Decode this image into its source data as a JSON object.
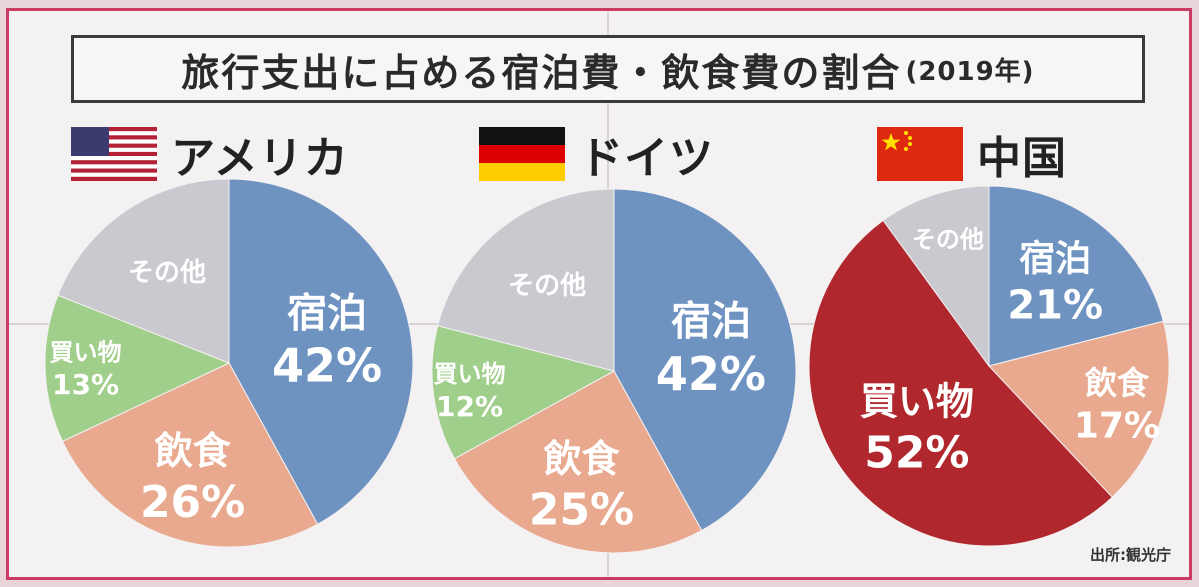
{
  "title": "旅行支出に占める宿泊費・飲食費の割合",
  "title_year": "(2019年)",
  "source": "出所:観光庁",
  "colors": {
    "border": "#c93b63",
    "lodging": "#6f93c1",
    "food": "#e8a98f",
    "shopping": "#9fcf8a",
    "other": "#c9c9cf",
    "shopping_cn": "#b0282e"
  },
  "countries": [
    {
      "name": "アメリカ",
      "flag": "us-flag"
    },
    {
      "name": "ドイツ",
      "flag": "germany-flag"
    },
    {
      "name": "中国",
      "flag": "china-flag"
    }
  ],
  "chart_data": [
    {
      "type": "pie",
      "title": "アメリカ",
      "categories": [
        "宿泊",
        "飲食",
        "買い物",
        "その他"
      ],
      "values": [
        42,
        26,
        13,
        null
      ],
      "labels": [
        "42%",
        "26%",
        "13%",
        ""
      ]
    },
    {
      "type": "pie",
      "title": "ドイツ",
      "categories": [
        "宿泊",
        "飲食",
        "買い物",
        "その他"
      ],
      "values": [
        42,
        25,
        12,
        null
      ],
      "labels": [
        "42%",
        "25%",
        "12%",
        ""
      ]
    },
    {
      "type": "pie",
      "title": "中国",
      "categories": [
        "宿泊",
        "飲食",
        "買い物",
        "その他"
      ],
      "values": [
        21,
        17,
        52,
        null
      ],
      "labels": [
        "21%",
        "17%",
        "52%",
        ""
      ]
    }
  ]
}
